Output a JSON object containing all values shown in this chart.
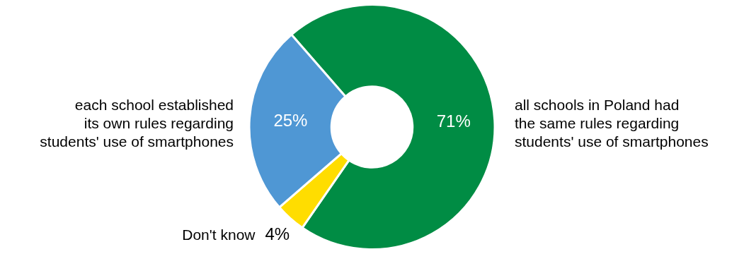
{
  "chart_data": {
    "type": "donut",
    "categories": [
      "all schools in Poland had\nthe same rules regarding\nstudents' use of smartphones",
      "Don't know",
      "each school established\nits own rules regarding\nstudents' use of smartphones"
    ],
    "values": [
      71,
      4,
      25
    ],
    "colors": [
      "#008c44",
      "#ffdd00",
      "#4f97d4"
    ],
    "value_labels": [
      "71%",
      "4%",
      "25%"
    ],
    "legend": false
  }
}
